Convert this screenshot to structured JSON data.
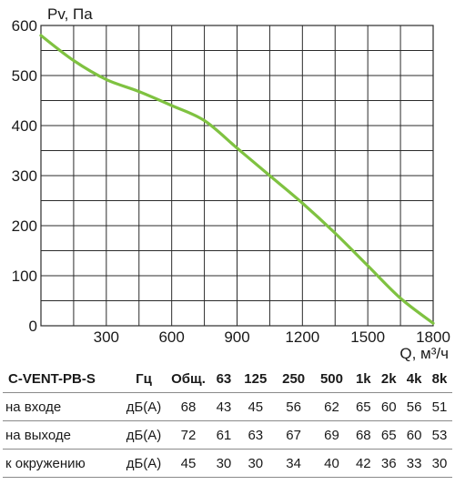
{
  "chart_data": {
    "type": "line",
    "ylabel": "Pv, Па",
    "xlabel": "Q, м³/ч",
    "xlim": [
      0,
      1800
    ],
    "ylim": [
      0,
      600
    ],
    "x_ticks": [
      "300",
      "600",
      "900",
      "1200",
      "1500",
      "1800"
    ],
    "y_ticks": [
      "0",
      "100",
      "200",
      "300",
      "400",
      "500",
      "600"
    ],
    "grid": true,
    "series": [
      {
        "color": "#7fc241",
        "x": [
          0,
          150,
          300,
          450,
          600,
          750,
          900,
          1050,
          1200,
          1350,
          1500,
          1650,
          1800
        ],
        "y": [
          580,
          530,
          492,
          468,
          440,
          410,
          355,
          300,
          245,
          185,
          120,
          55,
          5
        ]
      }
    ]
  },
  "table": {
    "model": "C-VENT-PB-S",
    "unit_header": "Гц",
    "total_header": "Общ.",
    "freq_headers": [
      "63",
      "125",
      "250",
      "500",
      "1k",
      "2k",
      "4k",
      "8k"
    ],
    "rows": [
      {
        "label": "на входе",
        "unit": "дБ(А)",
        "total": "68",
        "values": [
          "43",
          "45",
          "56",
          "62",
          "65",
          "60",
          "56",
          "51"
        ]
      },
      {
        "label": "на выходе",
        "unit": "дБ(А)",
        "total": "72",
        "values": [
          "61",
          "63",
          "67",
          "69",
          "68",
          "65",
          "60",
          "53"
        ]
      },
      {
        "label": "к окружению",
        "unit": "дБ(А)",
        "total": "45",
        "values": [
          "30",
          "30",
          "34",
          "40",
          "42",
          "36",
          "33",
          "30"
        ]
      }
    ]
  }
}
